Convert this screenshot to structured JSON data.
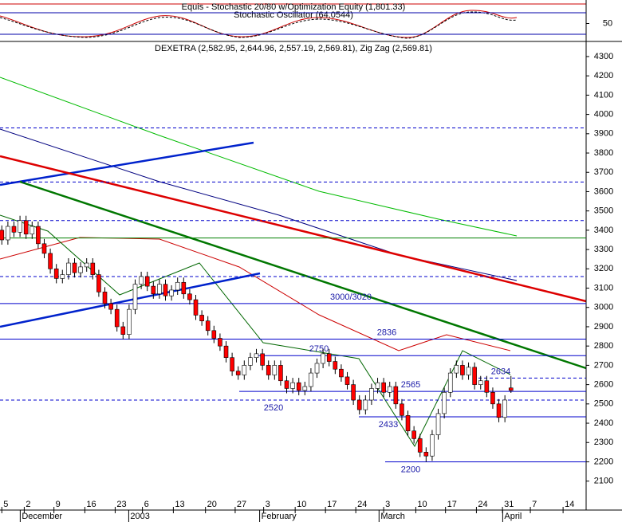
{
  "chart_data": {
    "type": "candlestick",
    "title": "DEXETRA (2,582.95, 2,644.96, 2,557.19, 2,569.81), Zig Zag (2,569.81)",
    "indicator_title": "Equis - Stochastic 20/80  w/Optimization Equity (1,801.33)",
    "indicator_subtitle": "Stochastic Oscillator (64.0544)",
    "indicator_ylim": [
      0,
      100
    ],
    "indicator_yticks": [
      50
    ],
    "indicator_levels": [
      20,
      80
    ],
    "up_color": "#ffffff",
    "down_color": "#ff0000",
    "xlim": [
      -0.3,
      96.4
    ],
    "ylim": [
      1950,
      4370
    ],
    "yticks": [
      2100,
      2200,
      2300,
      2400,
      2500,
      2600,
      2700,
      2800,
      2900,
      3000,
      3100,
      3200,
      3300,
      3400,
      3500,
      3600,
      3700,
      3800,
      3900,
      4000,
      4100,
      4200,
      4300
    ],
    "xticks": [
      {
        "value": 0,
        "label": "5"
      },
      {
        "value": 3.7,
        "label": "2"
      },
      {
        "value": 8.6,
        "label": "9"
      },
      {
        "value": 13.7,
        "label": "16"
      },
      {
        "value": 18.7,
        "label": "23"
      },
      {
        "value": 23.2,
        "label": "6"
      },
      {
        "value": 28.3,
        "label": "13"
      },
      {
        "value": 33.6,
        "label": "20"
      },
      {
        "value": 38.5,
        "label": "27"
      },
      {
        "value": 43.2,
        "label": "3"
      },
      {
        "value": 48.4,
        "label": "10"
      },
      {
        "value": 53.4,
        "label": "17"
      },
      {
        "value": 58.4,
        "label": "24"
      },
      {
        "value": 63,
        "label": "3"
      },
      {
        "value": 68.3,
        "label": "10"
      },
      {
        "value": 73.2,
        "label": "17"
      },
      {
        "value": 78.3,
        "label": "24"
      },
      {
        "value": 82.6,
        "label": "31"
      },
      {
        "value": 87.2,
        "label": "7"
      },
      {
        "value": 92.6,
        "label": "14"
      }
    ],
    "months": [
      {
        "value": 3.3,
        "label": "December"
      },
      {
        "value": 21.2,
        "label": "2003"
      },
      {
        "value": 42.8,
        "label": "February"
      },
      {
        "value": 62.5,
        "label": "March"
      },
      {
        "value": 82.9,
        "label": "April"
      }
    ],
    "x": [
      0,
      1,
      2,
      3,
      4,
      5,
      6,
      7,
      8,
      9,
      10,
      11,
      12,
      13,
      14,
      15,
      16,
      17,
      18,
      19,
      20,
      21,
      22,
      23,
      24,
      25,
      26,
      27,
      28,
      29,
      30,
      31,
      32,
      33,
      34,
      35,
      36,
      37,
      38,
      39,
      40,
      41,
      42,
      43,
      44,
      45,
      46,
      47,
      48,
      49,
      50,
      51,
      52,
      53,
      54,
      55,
      56,
      57,
      58,
      59,
      60,
      61,
      62,
      63,
      64,
      65,
      66,
      67,
      68,
      69,
      70,
      71,
      72,
      73,
      74,
      75,
      76,
      77,
      78,
      79,
      80,
      81,
      82,
      83,
      84
    ],
    "open": [
      3400,
      3350,
      3420,
      3390,
      3450,
      3380,
      3420,
      3330,
      3280,
      3200,
      3150,
      3170,
      3230,
      3180,
      3210,
      3230,
      3170,
      3080,
      3020,
      2990,
      2900,
      2860,
      2990,
      3120,
      3160,
      3110,
      3070,
      3120,
      3060,
      3090,
      3130,
      3070,
      3040,
      2960,
      2930,
      2880,
      2840,
      2800,
      2740,
      2670,
      2650,
      2700,
      2740,
      2760,
      2700,
      2650,
      2700,
      2620,
      2580,
      2610,
      2570,
      2590,
      2660,
      2710,
      2760,
      2720,
      2680,
      2640,
      2600,
      2520,
      2470,
      2520,
      2580,
      2610,
      2560,
      2590,
      2500,
      2440,
      2360,
      2320,
      2250,
      2230,
      2340,
      2450,
      2560,
      2660,
      2700,
      2650,
      2690,
      2600,
      2620,
      2560,
      2500,
      2430,
      2582.95
    ],
    "high": [
      3425,
      3445,
      3445,
      3475,
      3475,
      3445,
      3445,
      3355,
      3305,
      3225,
      3195,
      3255,
      3255,
      3235,
      3255,
      3255,
      3195,
      3105,
      3045,
      3015,
      2925,
      3015,
      3145,
      3185,
      3185,
      3135,
      3145,
      3145,
      3115,
      3155,
      3155,
      3095,
      3065,
      2985,
      2955,
      2905,
      2865,
      2825,
      2765,
      2695,
      2725,
      2765,
      2785,
      2785,
      2725,
      2725,
      2725,
      2645,
      2635,
      2635,
      2615,
      2685,
      2735,
      2785,
      2785,
      2745,
      2705,
      2665,
      2625,
      2545,
      2545,
      2605,
      2635,
      2635,
      2615,
      2615,
      2525,
      2465,
      2385,
      2345,
      2275,
      2365,
      2475,
      2585,
      2685,
      2725,
      2725,
      2715,
      2715,
      2645,
      2645,
      2585,
      2525,
      2545,
      2644.96
    ],
    "low": [
      3325,
      3325,
      3365,
      3365,
      3355,
      3355,
      3305,
      3255,
      3175,
      3125,
      3125,
      3145,
      3155,
      3155,
      3185,
      3145,
      3055,
      2995,
      2965,
      2875,
      2835,
      2835,
      2965,
      3095,
      3085,
      3045,
      3045,
      3035,
      3035,
      3065,
      3045,
      3015,
      2935,
      2905,
      2855,
      2815,
      2775,
      2715,
      2645,
      2625,
      2625,
      2675,
      2715,
      2675,
      2625,
      2625,
      2595,
      2555,
      2555,
      2545,
      2545,
      2565,
      2635,
      2685,
      2695,
      2655,
      2615,
      2575,
      2495,
      2445,
      2445,
      2495,
      2555,
      2535,
      2535,
      2475,
      2415,
      2335,
      2295,
      2225,
      2200,
      2205,
      2315,
      2425,
      2535,
      2635,
      2625,
      2625,
      2575,
      2575,
      2535,
      2475,
      2405,
      2405,
      2557.19
    ],
    "close": [
      3350,
      3420,
      3390,
      3450,
      3380,
      3420,
      3330,
      3280,
      3200,
      3150,
      3170,
      3230,
      3180,
      3210,
      3230,
      3170,
      3080,
      3020,
      2990,
      2900,
      2860,
      2990,
      3120,
      3160,
      3110,
      3070,
      3120,
      3060,
      3090,
      3130,
      3070,
      3040,
      2960,
      2930,
      2880,
      2840,
      2800,
      2740,
      2670,
      2650,
      2700,
      2740,
      2760,
      2700,
      2650,
      2700,
      2620,
      2580,
      2610,
      2570,
      2590,
      2660,
      2710,
      2760,
      2720,
      2680,
      2640,
      2600,
      2520,
      2470,
      2520,
      2580,
      2610,
      2560,
      2590,
      2500,
      2440,
      2360,
      2320,
      2250,
      2230,
      2340,
      2450,
      2560,
      2660,
      2700,
      2650,
      2690,
      2600,
      2620,
      2560,
      2500,
      2430,
      2520,
      2569.81
    ],
    "levels": [
      {
        "value": 3930,
        "color": "#0000cc",
        "dashed": true
      },
      {
        "value": 3650,
        "color": "#0000cc",
        "dashed": true
      },
      {
        "value": 3450,
        "color": "#0000cc",
        "dashed": true
      },
      {
        "value": 3360,
        "color": "#008000",
        "dashed": false
      },
      {
        "value": 3160,
        "color": "#0000cc",
        "dashed": true
      },
      {
        "value": 3020,
        "label": "3000/3020",
        "color": "#0000cc",
        "dashed": false
      },
      {
        "value": 2836,
        "color": "#0000cc",
        "dashed": false
      },
      {
        "value": 2750,
        "color": "#0000cc",
        "dashed": false
      },
      {
        "value": 2634,
        "color": "#0000cc",
        "dashed": true
      },
      {
        "value": 2565,
        "color": "#0000cc",
        "dashed": false
      },
      {
        "value": 2520,
        "color": "#0000cc",
        "dashed": true
      },
      {
        "value": 2433,
        "color": "#0000cc",
        "dashed": false
      },
      {
        "value": 2200,
        "color": "#0000cc",
        "dashed": false
      }
    ]
  }
}
